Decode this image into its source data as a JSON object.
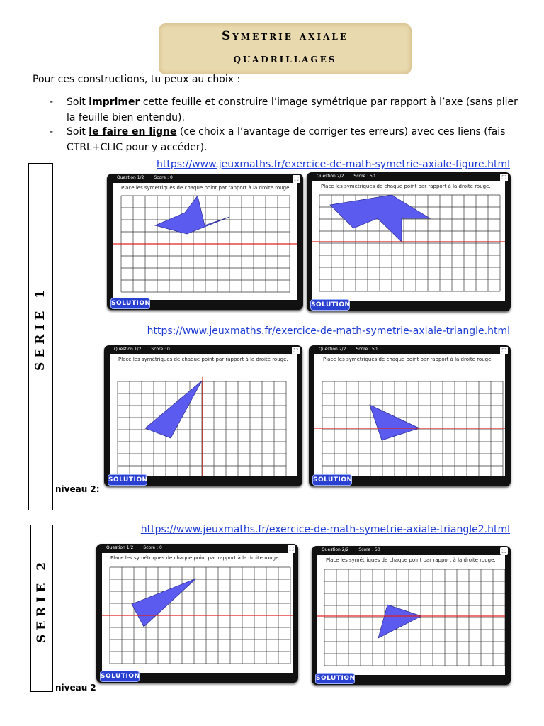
{
  "title": {
    "line1": "Symetrie axiale",
    "line2": "quadrillages"
  },
  "intro": "Pour ces constructions, tu peux au choix :",
  "bullets": [
    {
      "dash": "-",
      "pre": "Soit ",
      "keyword": "imprimer",
      "post": " cette feuille et construire l’image symétrique par rapport à l’axe (sans plier la feuille bien entendu)."
    },
    {
      "dash": "-",
      "pre": "Soit ",
      "keyword": "le faire en ligne",
      "post": " (ce choix a l’avantage de corriger tes erreurs) avec ces liens (fais CTRL+CLIC pour y accéder)."
    }
  ],
  "links": [
    "https://www.jeuxmaths.fr/exercice-de-math-symetrie-axiale-figure.html",
    "https://www.jeuxmaths.fr/exercice-de-math-symetrie-axiale-triangle.html",
    "https://www.jeuxmaths.fr/exercice-de-math-symetrie-axiale-triangle2.html"
  ],
  "series": [
    {
      "label": "SERIE 1"
    },
    {
      "label": "SERIE 2"
    }
  ],
  "niveau": [
    "niveau 2:",
    "niveau 2"
  ],
  "screens": {
    "instruction": "Place les symétriques de chaque point par rapport à la droite rouge.",
    "solution": "SOLUTION",
    "fullscreen_icon": "fullscreen-icon",
    "items": [
      {
        "question": "Question 1/2",
        "score": "Score : 0"
      },
      {
        "question": "Question 2/2",
        "score": "Score : 50"
      },
      {
        "question": "Question 1/2",
        "score": "Score : 0"
      },
      {
        "question": "Question 2/2",
        "score": "Score : 50"
      },
      {
        "question": "Question 1/2",
        "score": "Score : 0"
      },
      {
        "question": "Question 2/2",
        "score": "Score : 50"
      }
    ]
  },
  "colors": {
    "shape_fill": "#5b5bf0",
    "axis": "#e02020",
    "link": "#1f3bd6",
    "title_bg": "#e9d9ae"
  }
}
